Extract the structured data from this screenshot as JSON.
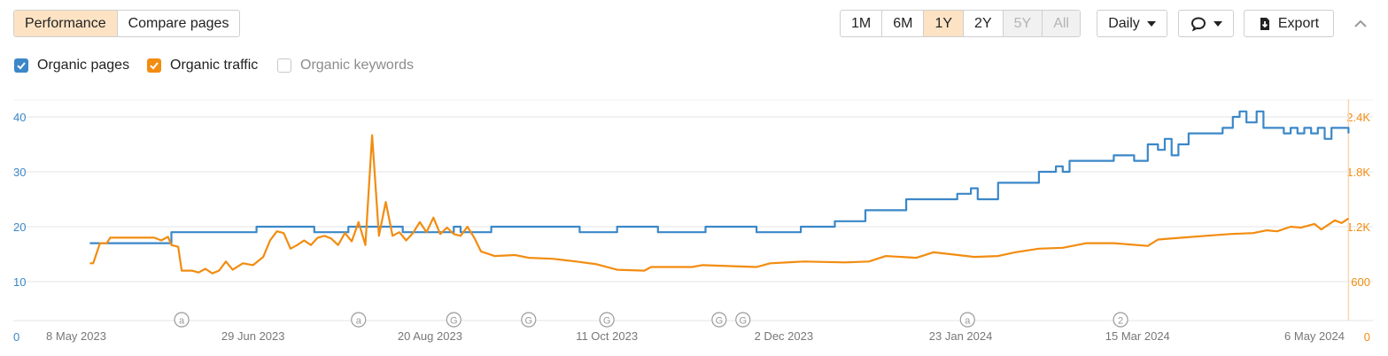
{
  "tabs": [
    {
      "label": "Performance",
      "active": true
    },
    {
      "label": "Compare pages",
      "active": false
    }
  ],
  "ranges": [
    {
      "label": "1M",
      "state": "normal"
    },
    {
      "label": "6M",
      "state": "normal"
    },
    {
      "label": "1Y",
      "state": "active"
    },
    {
      "label": "2Y",
      "state": "normal"
    },
    {
      "label": "5Y",
      "state": "disabled"
    },
    {
      "label": "All",
      "state": "disabled"
    }
  ],
  "interval": {
    "label": "Daily"
  },
  "annotations_menu": {
    "icon": "comment-icon"
  },
  "export": {
    "label": "Export",
    "icon": "download-icon"
  },
  "legend": [
    {
      "label": "Organic pages",
      "checked": true,
      "color": "#3b87c8"
    },
    {
      "label": "Organic traffic",
      "checked": true,
      "color": "#f28c10"
    },
    {
      "label": "Organic keywords",
      "checked": false,
      "color": "#8c8c8c"
    }
  ],
  "colors": {
    "pages": "#3b87c8",
    "traffic": "#f28c10",
    "grid": "#e6e6e6",
    "active_tab": "#fde3c4",
    "marker": "#f9d7b5",
    "annotation": "#9a9a9a"
  },
  "chart_data": {
    "type": "line",
    "x_ticks": [
      "8 May 2023",
      "29 Jun 2023",
      "20 Aug 2023",
      "11 Oct 2023",
      "2 Dec 2023",
      "23 Jan 2024",
      "15 Mar 2024",
      "6 May 2024"
    ],
    "x_range": [
      "2023-05-08",
      "2024-05-06"
    ],
    "left_axis": {
      "ticks": [
        "0",
        "10",
        "20",
        "30",
        "40"
      ],
      "range": [
        0,
        40
      ]
    },
    "right_axis": {
      "ticks": [
        "0",
        "600",
        "1.2K",
        "1.8K",
        "2.4K"
      ],
      "range": [
        0,
        2400
      ]
    },
    "grid": true,
    "series": [
      {
        "name": "Organic pages",
        "axis": "left",
        "values": [
          [
            "2023-05-12",
            17
          ],
          [
            "2023-06-01",
            17
          ],
          [
            "2023-06-05",
            19
          ],
          [
            "2023-06-28",
            19
          ],
          [
            "2023-06-30",
            20
          ],
          [
            "2023-07-15",
            20
          ],
          [
            "2023-07-17",
            19
          ],
          [
            "2023-07-25",
            19
          ],
          [
            "2023-07-27",
            20
          ],
          [
            "2023-08-10",
            20
          ],
          [
            "2023-08-12",
            19
          ],
          [
            "2023-08-25",
            19
          ],
          [
            "2023-08-27",
            20
          ],
          [
            "2023-08-29",
            19
          ],
          [
            "2023-09-05",
            19
          ],
          [
            "2023-09-07",
            20
          ],
          [
            "2023-10-01",
            20
          ],
          [
            "2023-10-03",
            19
          ],
          [
            "2023-10-12",
            19
          ],
          [
            "2023-10-14",
            20
          ],
          [
            "2023-10-24",
            20
          ],
          [
            "2023-10-26",
            19
          ],
          [
            "2023-11-07",
            19
          ],
          [
            "2023-11-09",
            20
          ],
          [
            "2023-11-22",
            20
          ],
          [
            "2023-11-24",
            19
          ],
          [
            "2023-12-05",
            19
          ],
          [
            "2023-12-07",
            20
          ],
          [
            "2023-12-15",
            20
          ],
          [
            "2023-12-17",
            21
          ],
          [
            "2023-12-24",
            21
          ],
          [
            "2023-12-26",
            23
          ],
          [
            "2024-01-05",
            23
          ],
          [
            "2024-01-07",
            25
          ],
          [
            "2024-01-15",
            25
          ],
          [
            "2024-01-20",
            25
          ],
          [
            "2024-01-22",
            26
          ],
          [
            "2024-01-26",
            27
          ],
          [
            "2024-01-28",
            25
          ],
          [
            "2024-02-01",
            25
          ],
          [
            "2024-02-03",
            28
          ],
          [
            "2024-02-13",
            28
          ],
          [
            "2024-02-15",
            30
          ],
          [
            "2024-02-20",
            31
          ],
          [
            "2024-02-22",
            30
          ],
          [
            "2024-02-24",
            32
          ],
          [
            "2024-03-06",
            32
          ],
          [
            "2024-03-08",
            33
          ],
          [
            "2024-03-12",
            33
          ],
          [
            "2024-03-14",
            32
          ],
          [
            "2024-03-18",
            35
          ],
          [
            "2024-03-21",
            34
          ],
          [
            "2024-03-23",
            36
          ],
          [
            "2024-03-25",
            33
          ],
          [
            "2024-03-27",
            35
          ],
          [
            "2024-03-30",
            37
          ],
          [
            "2024-04-06",
            37
          ],
          [
            "2024-04-09",
            38
          ],
          [
            "2024-04-12",
            40
          ],
          [
            "2024-04-14",
            41
          ],
          [
            "2024-04-16",
            39
          ],
          [
            "2024-04-19",
            41
          ],
          [
            "2024-04-21",
            38
          ],
          [
            "2024-04-25",
            38
          ],
          [
            "2024-04-27",
            37
          ],
          [
            "2024-04-29",
            38
          ],
          [
            "2024-05-01",
            37
          ],
          [
            "2024-05-03",
            38
          ],
          [
            "2024-05-05",
            37
          ],
          [
            "2024-05-07",
            38
          ],
          [
            "2024-05-09",
            36
          ],
          [
            "2024-05-11",
            38
          ],
          [
            "2024-05-15",
            38
          ],
          [
            "2024-05-16",
            37
          ]
        ]
      },
      {
        "name": "Organic traffic",
        "axis": "right",
        "values": [
          [
            "2023-05-12",
            800
          ],
          [
            "2023-05-13",
            800
          ],
          [
            "2023-05-15",
            1020
          ],
          [
            "2023-05-17",
            1020
          ],
          [
            "2023-05-18",
            1080
          ],
          [
            "2023-05-31",
            1080
          ],
          [
            "2023-06-02",
            1050
          ],
          [
            "2023-06-04",
            1090
          ],
          [
            "2023-06-05",
            1000
          ],
          [
            "2023-06-07",
            980
          ],
          [
            "2023-06-08",
            720
          ],
          [
            "2023-06-11",
            720
          ],
          [
            "2023-06-13",
            700
          ],
          [
            "2023-06-15",
            740
          ],
          [
            "2023-06-17",
            690
          ],
          [
            "2023-06-19",
            720
          ],
          [
            "2023-06-21",
            820
          ],
          [
            "2023-06-23",
            730
          ],
          [
            "2023-06-26",
            800
          ],
          [
            "2023-06-29",
            780
          ],
          [
            "2023-07-02",
            870
          ],
          [
            "2023-07-04",
            1050
          ],
          [
            "2023-07-06",
            1150
          ],
          [
            "2023-07-08",
            1130
          ],
          [
            "2023-07-10",
            960
          ],
          [
            "2023-07-12",
            1000
          ],
          [
            "2023-07-14",
            1050
          ],
          [
            "2023-07-16",
            1000
          ],
          [
            "2023-07-18",
            1080
          ],
          [
            "2023-07-20",
            1100
          ],
          [
            "2023-07-22",
            1070
          ],
          [
            "2023-07-24",
            1000
          ],
          [
            "2023-07-26",
            1130
          ],
          [
            "2023-07-28",
            1040
          ],
          [
            "2023-07-30",
            1250
          ],
          [
            "2023-08-01",
            1000
          ],
          [
            "2023-08-03",
            2200
          ],
          [
            "2023-08-05",
            1100
          ],
          [
            "2023-08-07",
            1470
          ],
          [
            "2023-08-09",
            1100
          ],
          [
            "2023-08-11",
            1140
          ],
          [
            "2023-08-13",
            1050
          ],
          [
            "2023-08-15",
            1130
          ],
          [
            "2023-08-17",
            1250
          ],
          [
            "2023-08-19",
            1140
          ],
          [
            "2023-08-21",
            1300
          ],
          [
            "2023-08-23",
            1120
          ],
          [
            "2023-08-25",
            1190
          ],
          [
            "2023-08-27",
            1120
          ],
          [
            "2023-08-29",
            1100
          ],
          [
            "2023-08-31",
            1200
          ],
          [
            "2023-09-02",
            1080
          ],
          [
            "2023-09-04",
            930
          ],
          [
            "2023-09-08",
            880
          ],
          [
            "2023-09-14",
            890
          ],
          [
            "2023-09-18",
            860
          ],
          [
            "2023-09-25",
            850
          ],
          [
            "2023-10-02",
            820
          ],
          [
            "2023-10-08",
            790
          ],
          [
            "2023-10-14",
            730
          ],
          [
            "2023-10-22",
            720
          ],
          [
            "2023-10-24",
            760
          ],
          [
            "2023-11-05",
            760
          ],
          [
            "2023-11-08",
            780
          ],
          [
            "2023-11-24",
            760
          ],
          [
            "2023-11-28",
            800
          ],
          [
            "2023-12-08",
            820
          ],
          [
            "2023-12-20",
            810
          ],
          [
            "2023-12-27",
            820
          ],
          [
            "2024-01-01",
            880
          ],
          [
            "2024-01-10",
            860
          ],
          [
            "2024-01-15",
            920
          ],
          [
            "2024-01-20",
            900
          ],
          [
            "2024-01-27",
            870
          ],
          [
            "2024-02-03",
            880
          ],
          [
            "2024-02-08",
            920
          ],
          [
            "2024-02-15",
            960
          ],
          [
            "2024-02-22",
            970
          ],
          [
            "2024-02-29",
            1020
          ],
          [
            "2024-03-08",
            1020
          ],
          [
            "2024-03-18",
            990
          ],
          [
            "2024-03-21",
            1060
          ],
          [
            "2024-03-28",
            1080
          ],
          [
            "2024-04-04",
            1100
          ],
          [
            "2024-04-11",
            1120
          ],
          [
            "2024-04-18",
            1130
          ],
          [
            "2024-04-22",
            1160
          ],
          [
            "2024-04-25",
            1150
          ],
          [
            "2024-04-29",
            1200
          ],
          [
            "2024-05-02",
            1190
          ],
          [
            "2024-05-06",
            1230
          ],
          [
            "2024-05-08",
            1170
          ],
          [
            "2024-05-12",
            1270
          ],
          [
            "2024-05-14",
            1240
          ],
          [
            "2024-05-16",
            1290
          ]
        ]
      }
    ],
    "annotations": [
      {
        "date": "2023-06-08",
        "label": "a"
      },
      {
        "date": "2023-07-30",
        "label": "a"
      },
      {
        "date": "2023-08-27",
        "label": "G"
      },
      {
        "date": "2023-09-18",
        "label": "G"
      },
      {
        "date": "2023-10-11",
        "label": "G"
      },
      {
        "date": "2023-11-13",
        "label": "G"
      },
      {
        "date": "2023-11-20",
        "label": "G"
      },
      {
        "date": "2024-01-25",
        "label": "a"
      },
      {
        "date": "2024-03-10",
        "label": "2"
      }
    ],
    "cursor_date": "2024-05-16"
  }
}
